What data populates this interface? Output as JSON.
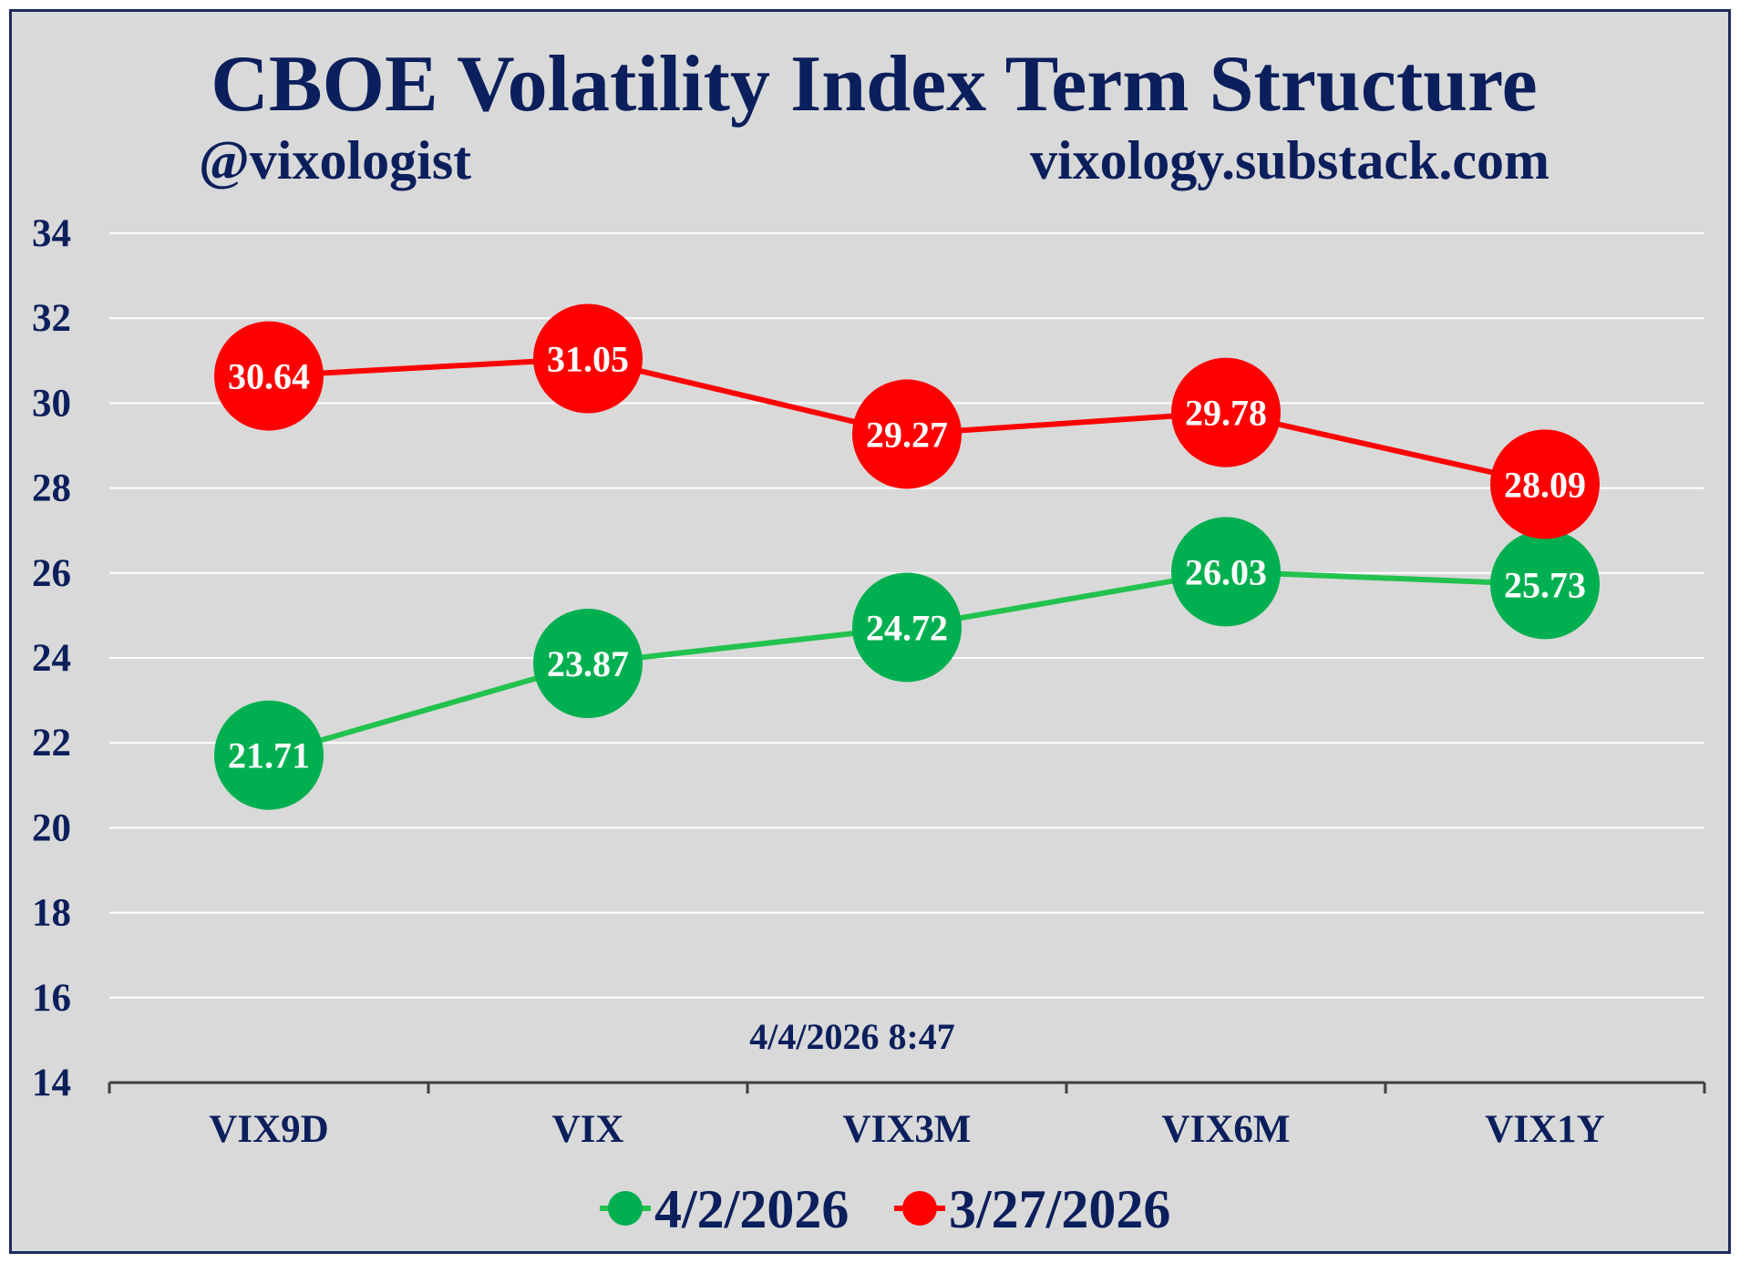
{
  "chart_data": {
    "type": "line",
    "title": "CBOE Volatility Index Term Structure",
    "subtitle_left": "@vixologist",
    "subtitle_right": "vixology.substack.com",
    "timestamp": "4/4/2026 8:47",
    "categories": [
      "VIX9D",
      "VIX",
      "VIX3M",
      "VIX6M",
      "VIX1Y"
    ],
    "ylim": [
      14,
      34
    ],
    "yticks": [
      14,
      16,
      18,
      20,
      22,
      24,
      26,
      28,
      30,
      32,
      34
    ],
    "grid": true,
    "legend_position": "bottom",
    "series": [
      {
        "name": "4/2/2026",
        "color": "#00b050",
        "line_color": "#22c24e",
        "values": [
          21.71,
          23.87,
          24.72,
          26.03,
          25.73
        ],
        "labels": [
          "21.71",
          "23.87",
          "24.72",
          "26.03",
          "25.73"
        ]
      },
      {
        "name": "3/27/2026",
        "color": "#ff0000",
        "line_color": "#ff0000",
        "values": [
          30.64,
          31.05,
          29.27,
          29.78,
          28.09
        ],
        "labels": [
          "30.64",
          "31.05",
          "29.27",
          "29.78",
          "28.09"
        ]
      }
    ]
  },
  "colors": {
    "background": "#d9d9d9",
    "text": "#0b1f5c",
    "grid": "#ffffff",
    "axis": "#404040"
  }
}
